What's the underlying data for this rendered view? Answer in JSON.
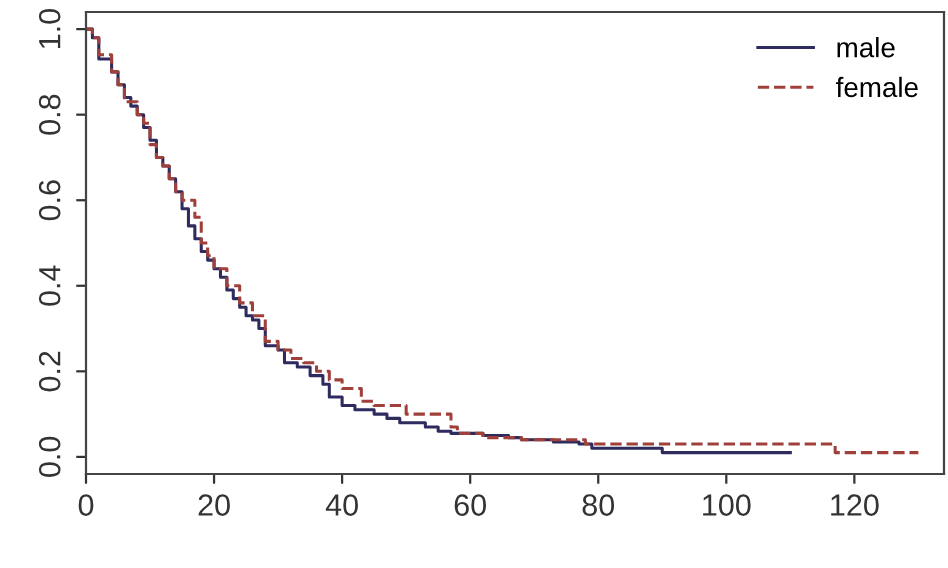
{
  "chart_data": {
    "type": "step",
    "xlim": [
      0,
      134
    ],
    "ylim": [
      -0.04,
      1.04
    ],
    "xticks": [
      0,
      20,
      40,
      60,
      80,
      100,
      120
    ],
    "yticks": [
      {
        "value": 0,
        "label": "0.0"
      },
      {
        "value": 0.2,
        "label": "0.2"
      },
      {
        "value": 0.4,
        "label": "0.4"
      },
      {
        "value": 0.6,
        "label": "0.6"
      },
      {
        "value": 0.8,
        "label": "0.8"
      },
      {
        "value": 1,
        "label": "1.0"
      }
    ],
    "grid": false,
    "legend": "top right",
    "series": [
      {
        "name": "male",
        "color": "#2e2b5f",
        "line_style": "solid",
        "x": [
          0,
          1,
          2,
          4,
          5,
          6,
          7,
          8,
          9,
          10,
          11,
          12,
          13,
          14,
          15,
          16,
          17,
          18,
          19,
          20,
          21,
          22,
          23,
          24,
          25,
          26,
          27,
          28,
          30,
          31,
          33,
          35,
          37,
          38,
          40,
          42,
          45,
          47,
          49,
          53,
          55,
          57,
          62,
          66,
          68,
          73,
          77,
          79,
          90,
          110
        ],
        "values": [
          1.0,
          0.98,
          0.93,
          0.9,
          0.87,
          0.84,
          0.82,
          0.8,
          0.77,
          0.74,
          0.7,
          0.68,
          0.65,
          0.62,
          0.58,
          0.54,
          0.51,
          0.48,
          0.46,
          0.44,
          0.42,
          0.39,
          0.37,
          0.35,
          0.33,
          0.32,
          0.3,
          0.26,
          0.25,
          0.22,
          0.21,
          0.19,
          0.17,
          0.14,
          0.12,
          0.11,
          0.1,
          0.09,
          0.08,
          0.07,
          0.06,
          0.055,
          0.05,
          0.045,
          0.04,
          0.035,
          0.03,
          0.02,
          0.01,
          0.01
        ]
      },
      {
        "name": "female",
        "color": "#a0403a",
        "line_style": "dashed",
        "x": [
          0,
          1,
          2,
          4,
          5,
          6,
          8,
          9,
          10,
          11,
          12,
          13,
          14,
          15,
          17,
          18,
          19,
          20,
          22,
          24,
          26,
          28,
          30,
          32,
          34,
          36,
          38,
          40,
          43,
          45,
          50,
          57,
          58,
          62,
          68,
          78,
          117,
          130
        ],
        "values": [
          1.0,
          0.98,
          0.94,
          0.9,
          0.87,
          0.83,
          0.8,
          0.78,
          0.73,
          0.7,
          0.68,
          0.65,
          0.62,
          0.6,
          0.56,
          0.5,
          0.47,
          0.44,
          0.4,
          0.36,
          0.33,
          0.27,
          0.25,
          0.23,
          0.22,
          0.2,
          0.18,
          0.16,
          0.13,
          0.12,
          0.1,
          0.07,
          0.055,
          0.045,
          0.04,
          0.03,
          0.01,
          0.01
        ]
      }
    ]
  }
}
